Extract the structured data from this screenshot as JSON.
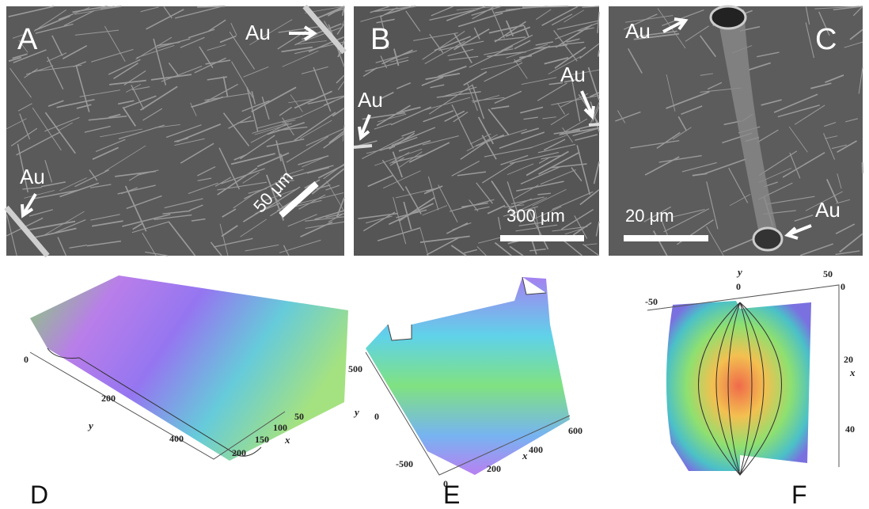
{
  "panels": [
    {
      "label": "A",
      "annotations": [
        "Au",
        "Au"
      ],
      "scale_bar": "50 μm"
    },
    {
      "label": "B",
      "annotations": [
        "Au",
        "Au"
      ],
      "scale_bar": "300 μm"
    },
    {
      "label": "C",
      "annotations": [
        "Au",
        "Au"
      ],
      "scale_bar": "20 μm"
    },
    {
      "label": "D",
      "x_axis": {
        "label": "x",
        "ticks": [
          "50",
          "100",
          "150",
          "200"
        ]
      },
      "y_axis": {
        "label": "y",
        "ticks": [
          "0",
          "200",
          "400"
        ]
      }
    },
    {
      "label": "E",
      "x_axis": {
        "label": "x",
        "ticks": [
          "0",
          "200",
          "400",
          "600"
        ]
      },
      "y_axis": {
        "label": "y",
        "ticks": [
          "500",
          "0",
          "-500"
        ]
      }
    },
    {
      "label": "F",
      "x_axis": {
        "label": "x",
        "ticks": [
          "0",
          "20",
          "40"
        ]
      },
      "y_axis": {
        "label": "y",
        "ticks": [
          "-50",
          "0",
          "50"
        ]
      }
    }
  ]
}
